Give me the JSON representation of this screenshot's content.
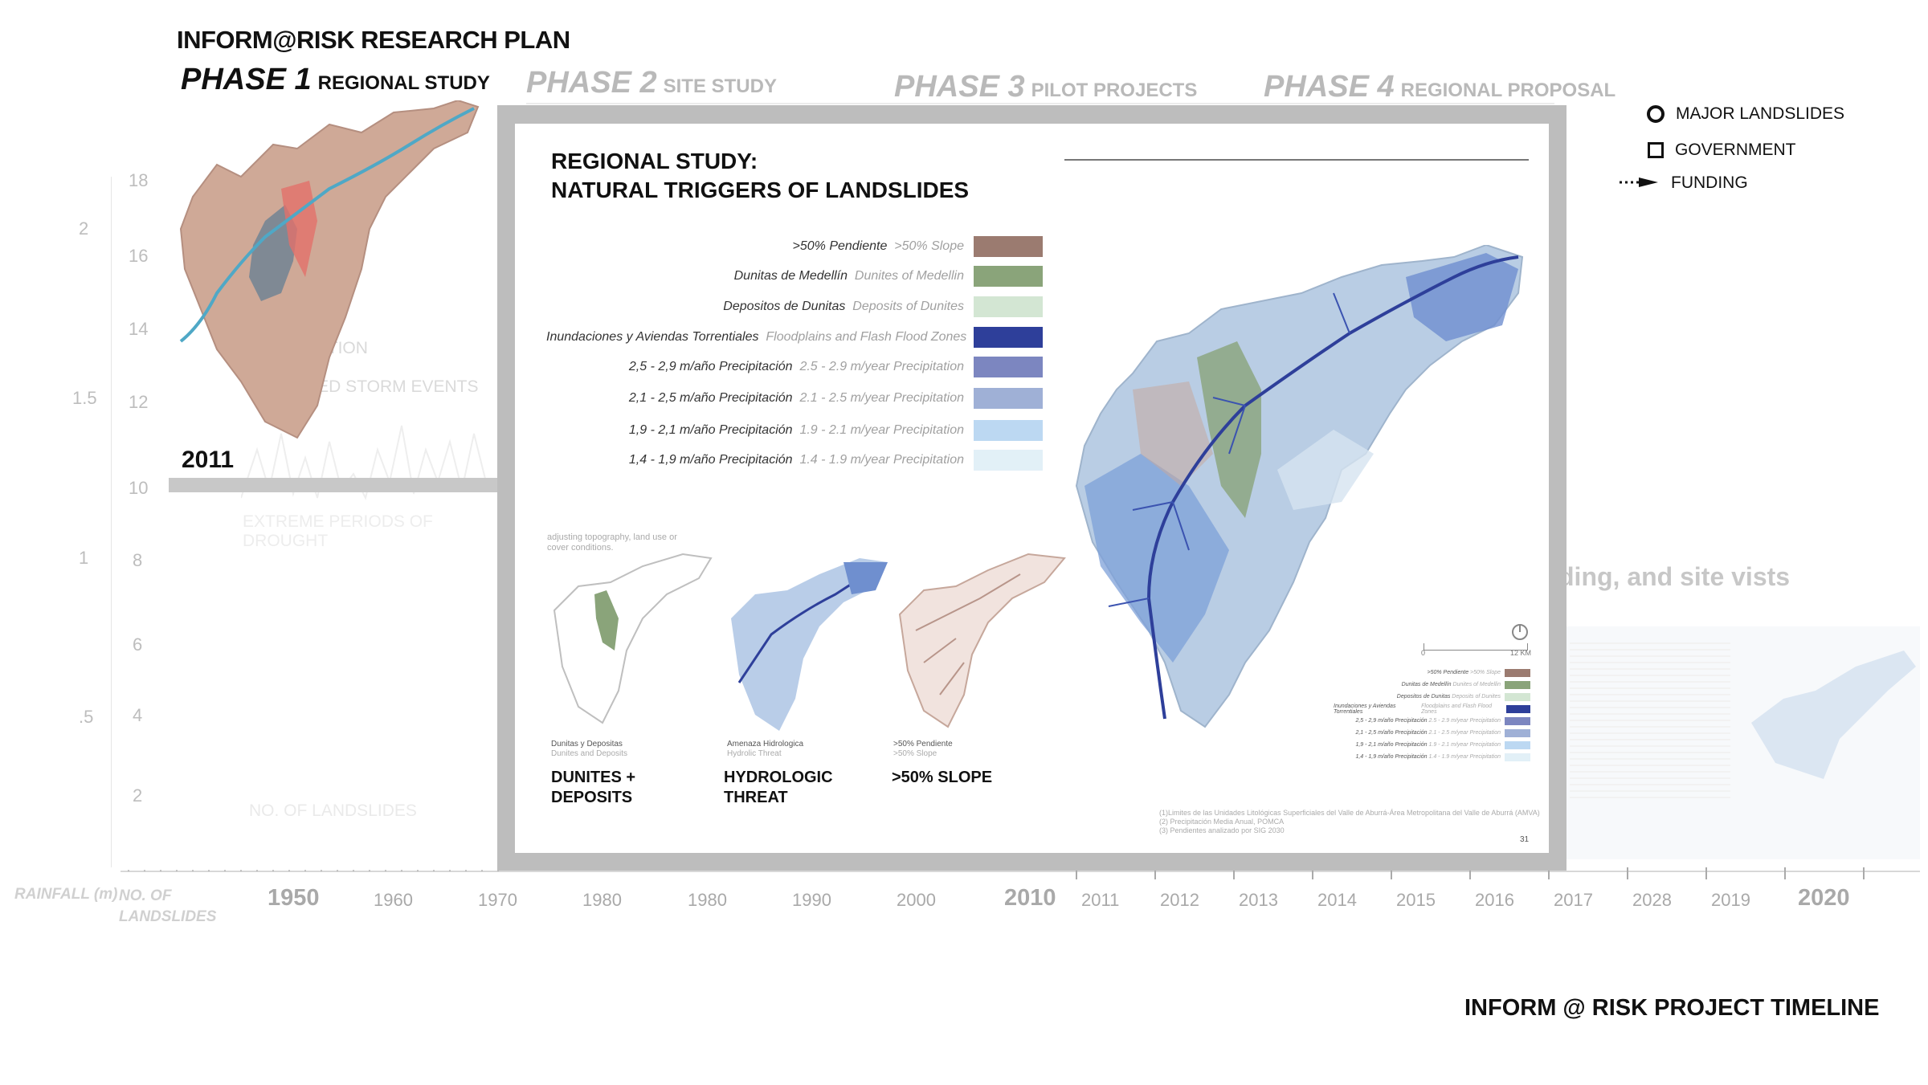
{
  "header": {
    "title": "INFORM@RISK RESEARCH PLAN",
    "phases": [
      {
        "label": "PHASE 1",
        "sub": "REGIONAL STUDY"
      },
      {
        "label": "PHASE 2",
        "sub": "SITE STUDY"
      },
      {
        "label": "PHASE 3",
        "sub": "PILOT PROJECTS"
      },
      {
        "label": "PHASE 4",
        "sub": "REGIONAL PROPOSAL"
      }
    ]
  },
  "legend": {
    "major_landslides": "MAJOR LANDSLIDES",
    "government": "GOVERNMENT",
    "funding": "FUNDING"
  },
  "left_chart": {
    "year_label": "2011",
    "precipitation": "PRECIPITATION",
    "extended_storm": "EXTENDED STORM EVENTS",
    "extreme_drought": "EXTREME PERIODS OF DROUGHT",
    "no_landslides": "NO. OF LANDSLIDES",
    "y_ticks_right": [
      "18",
      "16",
      "14",
      "12",
      "10",
      "8",
      "6",
      "4",
      "2"
    ],
    "y_ticks_left": [
      "2",
      "1.5",
      "1",
      ".5"
    ],
    "rainfall_label": "RAINFALL (m)",
    "landslides_label": "NO. OF LANDSLIDES"
  },
  "timeline": {
    "years": [
      "1950",
      "1960",
      "1970",
      "1980",
      "1980",
      "1990",
      "2000",
      "2010",
      "2011",
      "2012",
      "2013",
      "2014",
      "2015",
      "2016",
      "2017",
      "2028",
      "2019",
      "2020"
    ],
    "right_text": "ding, and site vists"
  },
  "panel": {
    "title_line1": "REGIONAL STUDY:",
    "title_line2": "NATURAL TRIGGERS OF LANDSLIDES",
    "legend": [
      {
        "es": ">50% Pendiente",
        "en": ">50% Slope",
        "color": "#9b7b70"
      },
      {
        "es": "Dunitas de Medellín",
        "en": "Dunites of Medellin",
        "color": "#8aa47a"
      },
      {
        "es": "Depositos de Dunitas",
        "en": "Deposits of Dunites",
        "color": "#d3e6d3"
      },
      {
        "es": "Inundaciones y Aviendas Torrentiales",
        "en": "Floodplains and Flash Flood Zones",
        "color": "#2e3f9a"
      },
      {
        "es": "2,5 - 2,9 m/año Precipitación",
        "en": "2.5 - 2.9 m/year Precipitation",
        "color": "#7c86c0"
      },
      {
        "es": "2,1 - 2,5 m/año Precipitación",
        "en": "2.1 - 2.5 m/year Precipitation",
        "color": "#9fb0d6"
      },
      {
        "es": "1,9 - 2,1 m/año Precipitación",
        "en": "1.9 - 2.1 m/year Precipitation",
        "color": "#bcd8f2"
      },
      {
        "es": "1,4 - 1,9 m/año Precipitación",
        "en": "1.4 - 1.9 m/year Precipitation",
        "color": "#e2f0f7"
      }
    ],
    "note": "adjusting topography, land use or cover conditions.",
    "minis": [
      {
        "cap_es": "Dunitas y Depositas",
        "cap_en": "Dunites and Deposits",
        "title1": "DUNITES +",
        "title2": "DEPOSITS"
      },
      {
        "cap_es": "Amenaza Hidrologica",
        "cap_en": "Hydrolic Threat",
        "title1": "HYDROLOGIC",
        "title2": "THREAT"
      },
      {
        "cap_es": ">50% Pendiente",
        "cap_en": ">50% Slope",
        "title1": ">50% SLOPE",
        "title2": ""
      }
    ],
    "scale": {
      "start": "0",
      "end": "12 KM"
    },
    "sources": [
      "(1)Limites de las Unidades Litológicas Superficiales del Valle de Aburrá-Área Metropolitana del Valle de Aburrá (AMVA)",
      "(2) Precipitación Media Anual, POMCA",
      "(3) Pendientes analizado por SIG 2030"
    ],
    "page_number": "31"
  },
  "footer": {
    "timeline_title": "INFORM @ RISK PROJECT TIMELINE"
  }
}
